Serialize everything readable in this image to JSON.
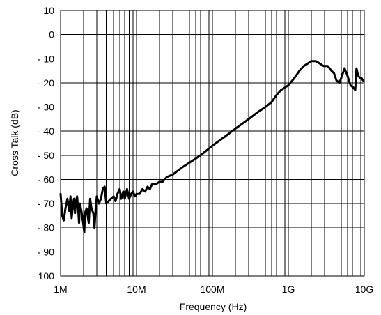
{
  "chart_data": {
    "type": "line",
    "title": "",
    "xlabel": "Frequency (Hz)",
    "ylabel": "Cross Talk (dB)",
    "x_scale": "log",
    "xlim": [
      1000000,
      10000000000
    ],
    "ylim": [
      -100,
      10
    ],
    "grid": true,
    "legend": "none",
    "x_tick_values": [
      1000000,
      10000000,
      100000000,
      1000000000,
      10000000000
    ],
    "x_tick_labels": [
      "1M",
      "10M",
      "100M",
      "1G",
      "10G"
    ],
    "y_tick_values": [
      10,
      0,
      -10,
      -20,
      -30,
      -40,
      -50,
      -60,
      -70,
      -80,
      -90,
      -100
    ],
    "y_tick_labels": [
      "10",
      "0",
      "- 10",
      "- 20",
      "- 30",
      "- 40",
      "- 50",
      "- 60",
      "- 70",
      "- 80",
      "- 90",
      "- 100"
    ],
    "series": [
      {
        "color": "#000000",
        "points": [
          [
            1000000,
            -66
          ],
          [
            1050000,
            -75
          ],
          [
            1100000,
            -77
          ],
          [
            1160000,
            -72
          ],
          [
            1230000,
            -68
          ],
          [
            1300000,
            -73
          ],
          [
            1350000,
            -67
          ],
          [
            1400000,
            -76
          ],
          [
            1450000,
            -71
          ],
          [
            1500000,
            -68
          ],
          [
            1550000,
            -74
          ],
          [
            1600000,
            -69
          ],
          [
            1650000,
            -67
          ],
          [
            1700000,
            -72
          ],
          [
            1750000,
            -78
          ],
          [
            1800000,
            -70
          ],
          [
            1900000,
            -74
          ],
          [
            2000000,
            -79
          ],
          [
            2050000,
            -82
          ],
          [
            2100000,
            -74
          ],
          [
            2200000,
            -72
          ],
          [
            2350000,
            -78
          ],
          [
            2450000,
            -68
          ],
          [
            2550000,
            -72
          ],
          [
            2700000,
            -74
          ],
          [
            2800000,
            -80
          ],
          [
            2900000,
            -72
          ],
          [
            3000000,
            -67
          ],
          [
            3200000,
            -70
          ],
          [
            3400000,
            -68
          ],
          [
            3600000,
            -64
          ],
          [
            3800000,
            -63
          ],
          [
            4000000,
            -70
          ],
          [
            4300000,
            -69
          ],
          [
            4600000,
            -68
          ],
          [
            5000000,
            -67
          ],
          [
            5300000,
            -69
          ],
          [
            5600000,
            -66
          ],
          [
            6000000,
            -64
          ],
          [
            6300000,
            -68
          ],
          [
            6700000,
            -65
          ],
          [
            7000000,
            -68
          ],
          [
            7500000,
            -64
          ],
          [
            8000000,
            -68
          ],
          [
            8500000,
            -66
          ],
          [
            9000000,
            -65
          ],
          [
            9500000,
            -67
          ],
          [
            10000000,
            -66
          ],
          [
            11000000,
            -66
          ],
          [
            12000000,
            -64
          ],
          [
            13000000,
            -65
          ],
          [
            14000000,
            -63
          ],
          [
            15000000,
            -64
          ],
          [
            16000000,
            -62
          ],
          [
            18000000,
            -62
          ],
          [
            20000000,
            -61
          ],
          [
            22000000,
            -61
          ],
          [
            25000000,
            -59
          ],
          [
            30000000,
            -58
          ],
          [
            40000000,
            -55
          ],
          [
            50000000,
            -53
          ],
          [
            70000000,
            -50
          ],
          [
            100000000,
            -46
          ],
          [
            150000000,
            -42
          ],
          [
            200000000,
            -39
          ],
          [
            300000000,
            -35
          ],
          [
            400000000,
            -32
          ],
          [
            500000000,
            -30
          ],
          [
            600000000,
            -28
          ],
          [
            700000000,
            -25
          ],
          [
            800000000,
            -23
          ],
          [
            1000000000,
            -21
          ],
          [
            1200000000,
            -18
          ],
          [
            1400000000,
            -15
          ],
          [
            1600000000,
            -13
          ],
          [
            1800000000,
            -12
          ],
          [
            2000000000,
            -11
          ],
          [
            2300000000,
            -11
          ],
          [
            2600000000,
            -12
          ],
          [
            2900000000,
            -13
          ],
          [
            3300000000,
            -13
          ],
          [
            3700000000,
            -15
          ],
          [
            4000000000,
            -16
          ],
          [
            4300000000,
            -19
          ],
          [
            4700000000,
            -20
          ],
          [
            5100000000,
            -17
          ],
          [
            5500000000,
            -14
          ],
          [
            6000000000,
            -17
          ],
          [
            6600000000,
            -21
          ],
          [
            7200000000,
            -22
          ],
          [
            7600000000,
            -23
          ],
          [
            7900000000,
            -14
          ],
          [
            8300000000,
            -17
          ],
          [
            8800000000,
            -18
          ],
          [
            9200000000,
            -18
          ],
          [
            9600000000,
            -19
          ]
        ]
      }
    ]
  }
}
